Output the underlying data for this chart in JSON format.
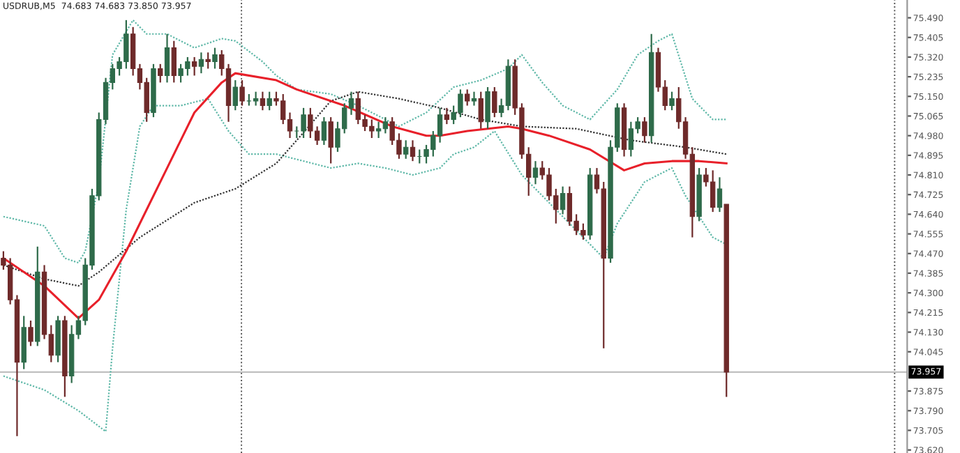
{
  "chart_data": {
    "type": "candlestick",
    "title": "USDRUB,M5  74.683 74.683 73.850 73.957",
    "categories": [
      null,
      null,
      null,
      null,
      null,
      null,
      null,
      null,
      null,
      null,
      null,
      null,
      null,
      null,
      null,
      null,
      null,
      null,
      null,
      null,
      null,
      null,
      null,
      null,
      null,
      null,
      null,
      null,
      null,
      null,
      null,
      null,
      null,
      null,
      null,
      null,
      null,
      null,
      null,
      null,
      null,
      null,
      null,
      null,
      null,
      null,
      null,
      null,
      null,
      null,
      null,
      null,
      null,
      null,
      null,
      null,
      null,
      null,
      null,
      null,
      null,
      null,
      null,
      null,
      null,
      null,
      null,
      null,
      null,
      null,
      null,
      null,
      null,
      null,
      null,
      null,
      null,
      null,
      null,
      null,
      null,
      null,
      null,
      null,
      null,
      null,
      null,
      null,
      null,
      null,
      null,
      null,
      null,
      null,
      null,
      null,
      null,
      null,
      null,
      null,
      null,
      null,
      null,
      null,
      null,
      null,
      null,
      null,
      null,
      null,
      null,
      null,
      null,
      null,
      null,
      null,
      null,
      null,
      null,
      null,
      null,
      null,
      null,
      null,
      null,
      null,
      null,
      null,
      null,
      null,
      null,
      null,
      null
    ],
    "colors": [
      "#6e2a2a",
      "#6e2a2a",
      "#6e2a2a",
      "#2e6b4a",
      "#6e2a2a",
      "#2e6b4a",
      "#6e2a2a",
      "#6e2a2a",
      "#2e6b4a",
      "#6e2a2a",
      "#2e6b4a",
      "#2e6b4a",
      "#2e6b4a",
      "#2e6b4a",
      "#2e6b4a",
      "#2e6b4a",
      "#2e6b4a",
      "#2e6b4a",
      "#2e6b4a",
      "#6e2a2a",
      "#6e2a2a",
      "#6e2a2a",
      "#2e6b4a",
      "#6e2a2a",
      "#2e6b4a",
      "#6e2a2a",
      "#2e6b4a",
      "#2e6b4a",
      "#6e2a2a",
      "#2e6b4a",
      "#6e2a2a",
      "#2e6b4a",
      "#6e2a2a",
      "#6e2a2a",
      "#2e6b4a",
      "#6e2a2a",
      "#2e6b4a",
      "#2e6b4a",
      "#6e2a2a",
      "#2e6b4a",
      "#6e2a2a",
      "#6e2a2a",
      "#6e2a2a",
      "#2e6b4a",
      "#2e6b4a",
      "#6e2a2a",
      "#6e2a2a",
      "#2e6b4a",
      "#6e2a2a",
      "#2e6b4a",
      "#2e6b4a",
      "#2e6b4a",
      "#6e2a2a",
      "#6e2a2a",
      "#6e2a2a",
      "#2e6b4a",
      "#2e6b4a",
      "#6e2a2a",
      "#6e2a2a",
      "#2e6b4a",
      "#6e2a2a",
      "#2e6b4a",
      "#2e6b4a",
      "#2e6b4a",
      "#2e6b4a",
      "#6e2a2a",
      "#2e6b4a",
      "#2e6b4a",
      "#6e2a2a",
      "#2e6b4a",
      "#6e2a2a",
      "#2e6b4a",
      "#6e2a2a",
      "#2e6b4a",
      "#2e6b4a",
      "#6e2a2a",
      "#6e2a2a",
      "#6e2a2a",
      "#2e6b4a",
      "#6e2a2a",
      "#6e2a2a",
      "#6e2a2a",
      "#2e6b4a",
      "#6e2a2a",
      "#6e2a2a",
      "#6e2a2a",
      "#2e6b4a",
      "#6e2a2a",
      "#6e2a2a",
      "#2e6b4a",
      "#2e6b4a",
      "#6e2a2a",
      "#2e6b4a",
      "#2e6b4a",
      "#6e2a2a",
      "#2e6b4a",
      "#6e2a2a",
      "#6e2a2a",
      "#2e6b4a",
      "#6e2a2a",
      "#6e2a2a",
      "#6e2a2a",
      "#2e6b4a",
      "#6e2a2a",
      "#6e2a2a",
      "#2e6b4a",
      "#6e2a2a",
      null,
      null,
      null,
      null,
      null,
      null,
      null,
      null,
      null,
      null,
      null,
      null,
      null,
      null,
      null,
      null,
      null,
      null,
      null,
      null,
      null,
      null,
      null,
      null,
      null,
      null
    ],
    "ohlc": [
      [
        74.45,
        74.48,
        74.4,
        74.42
      ],
      [
        74.42,
        74.45,
        74.25,
        74.27
      ],
      [
        74.27,
        74.29,
        73.68,
        74.0
      ],
      [
        74.0,
        74.2,
        73.97,
        74.15
      ],
      [
        74.15,
        74.18,
        74.07,
        74.09
      ],
      [
        74.09,
        74.5,
        74.07,
        74.39
      ],
      [
        74.39,
        74.42,
        74.1,
        74.12
      ],
      [
        74.12,
        74.16,
        74.0,
        74.03
      ],
      [
        74.03,
        74.2,
        74.0,
        74.18
      ],
      [
        74.18,
        74.2,
        73.85,
        73.94
      ],
      [
        73.94,
        74.16,
        73.91,
        74.12
      ],
      [
        74.12,
        74.2,
        74.1,
        74.18
      ],
      [
        74.18,
        74.45,
        74.16,
        74.42
      ],
      [
        74.42,
        74.75,
        74.4,
        74.72
      ],
      [
        74.72,
        75.08,
        74.7,
        75.05
      ],
      [
        75.05,
        75.23,
        75.03,
        75.21
      ],
      [
        75.21,
        75.29,
        75.18,
        75.27
      ],
      [
        75.27,
        75.32,
        75.24,
        75.3
      ],
      [
        75.3,
        75.48,
        75.27,
        75.42
      ],
      [
        75.42,
        75.45,
        75.24,
        75.27
      ],
      [
        75.27,
        75.29,
        75.18,
        75.21
      ],
      [
        75.21,
        75.23,
        75.04,
        75.08
      ],
      [
        75.08,
        75.29,
        75.06,
        75.27
      ],
      [
        75.27,
        75.29,
        75.21,
        75.24
      ],
      [
        75.24,
        75.42,
        75.21,
        75.36
      ],
      [
        75.36,
        75.39,
        75.21,
        75.24
      ],
      [
        75.24,
        75.29,
        75.21,
        75.27
      ],
      [
        75.27,
        75.32,
        75.24,
        75.3
      ],
      [
        75.3,
        75.32,
        75.24,
        75.28
      ],
      [
        75.28,
        75.34,
        75.25,
        75.31
      ],
      [
        75.31,
        75.34,
        75.27,
        75.3
      ],
      [
        75.3,
        75.36,
        75.27,
        75.33
      ],
      [
        75.33,
        75.35,
        75.24,
        75.27
      ],
      [
        75.27,
        75.29,
        75.04,
        75.11
      ],
      [
        75.11,
        75.22,
        75.09,
        75.19
      ],
      [
        75.19,
        75.22,
        75.11,
        75.13
      ],
      [
        75.13,
        75.16,
        75.11,
        75.13
      ],
      [
        75.13,
        75.17,
        75.11,
        75.14
      ],
      [
        75.14,
        75.17,
        75.09,
        75.11
      ],
      [
        75.11,
        75.17,
        75.09,
        75.14
      ],
      [
        75.14,
        75.17,
        75.11,
        75.13
      ],
      [
        75.13,
        75.16,
        75.03,
        75.05
      ],
      [
        75.05,
        75.08,
        74.97,
        75.0
      ],
      [
        75.0,
        75.02,
        74.97,
        75.0
      ],
      [
        75.0,
        75.1,
        74.97,
        75.07
      ],
      [
        75.07,
        75.1,
        74.97,
        75.0
      ],
      [
        75.0,
        75.02,
        74.94,
        74.96
      ],
      [
        74.96,
        75.06,
        74.94,
        75.04
      ],
      [
        75.04,
        75.06,
        74.86,
        74.93
      ],
      [
        74.93,
        75.04,
        74.91,
        75.01
      ],
      [
        75.01,
        75.12,
        74.99,
        75.1
      ],
      [
        75.1,
        75.17,
        75.07,
        75.14
      ],
      [
        75.14,
        75.17,
        75.03,
        75.05
      ],
      [
        75.05,
        75.07,
        75.0,
        75.02
      ],
      [
        75.02,
        75.05,
        74.97,
        75.0
      ],
      [
        75.0,
        75.04,
        74.97,
        75.01
      ],
      [
        75.01,
        75.06,
        74.99,
        75.04
      ],
      [
        75.04,
        75.06,
        74.94,
        74.96
      ],
      [
        74.96,
        74.99,
        74.88,
        74.9
      ],
      [
        74.9,
        74.96,
        74.88,
        74.93
      ],
      [
        74.93,
        74.96,
        74.87,
        74.89
      ],
      [
        74.89,
        74.92,
        74.86,
        74.89
      ],
      [
        74.89,
        74.94,
        74.86,
        74.92
      ],
      [
        74.92,
        75.0,
        74.89,
        74.98
      ],
      [
        74.98,
        75.1,
        74.95,
        75.07
      ],
      [
        75.07,
        75.1,
        75.03,
        75.05
      ],
      [
        75.05,
        75.11,
        75.03,
        75.08
      ],
      [
        75.08,
        75.18,
        75.06,
        75.16
      ],
      [
        75.16,
        75.18,
        75.11,
        75.13
      ],
      [
        75.13,
        75.17,
        75.11,
        75.14
      ],
      [
        75.14,
        75.17,
        75.01,
        75.04
      ],
      [
        75.04,
        75.19,
        75.01,
        75.17
      ],
      [
        75.17,
        75.19,
        75.06,
        75.08
      ],
      [
        75.08,
        75.14,
        75.06,
        75.11
      ],
      [
        75.11,
        75.31,
        75.09,
        75.28
      ],
      [
        75.28,
        75.31,
        75.07,
        75.1
      ],
      [
        75.1,
        75.12,
        74.88,
        74.9
      ],
      [
        74.9,
        74.93,
        74.72,
        74.8
      ],
      [
        74.8,
        74.87,
        74.77,
        74.84
      ],
      [
        74.84,
        74.87,
        74.79,
        74.81
      ],
      [
        74.81,
        74.84,
        74.7,
        74.72
      ],
      [
        74.72,
        74.75,
        74.6,
        74.66
      ],
      [
        74.66,
        74.76,
        74.64,
        74.73
      ],
      [
        74.73,
        74.76,
        74.59,
        74.61
      ],
      [
        74.61,
        74.64,
        74.55,
        74.57
      ],
      [
        74.57,
        74.6,
        74.53,
        74.55
      ],
      [
        74.55,
        74.84,
        74.53,
        74.81
      ],
      [
        74.81,
        74.84,
        74.73,
        74.75
      ],
      [
        74.75,
        74.78,
        74.06,
        74.45
      ],
      [
        74.45,
        74.96,
        74.43,
        74.93
      ],
      [
        74.93,
        75.12,
        74.91,
        75.1
      ],
      [
        75.1,
        75.12,
        74.89,
        74.92
      ],
      [
        74.92,
        75.04,
        74.89,
        75.01
      ],
      [
        75.01,
        75.06,
        74.99,
        75.04
      ],
      [
        75.04,
        75.06,
        74.95,
        74.98
      ],
      [
        74.98,
        75.42,
        74.95,
        75.34
      ],
      [
        75.34,
        75.36,
        75.17,
        75.19
      ],
      [
        75.19,
        75.22,
        75.09,
        75.11
      ],
      [
        75.11,
        75.17,
        75.09,
        75.14
      ],
      [
        75.14,
        75.19,
        75.01,
        75.04
      ],
      [
        75.04,
        75.06,
        74.88,
        74.9
      ],
      [
        74.9,
        74.93,
        74.54,
        74.63
      ],
      [
        74.63,
        74.84,
        74.61,
        74.81
      ],
      [
        74.81,
        74.84,
        74.76,
        74.78
      ],
      [
        74.78,
        74.83,
        74.65,
        74.67
      ],
      [
        74.67,
        74.8,
        74.65,
        74.75
      ],
      [
        74.683,
        74.683,
        73.85,
        73.957
      ],
      null,
      null,
      null,
      null,
      null,
      null,
      null,
      null,
      null,
      null,
      null,
      null,
      null,
      null,
      null,
      null,
      null,
      null,
      null,
      null,
      null,
      null,
      null,
      null,
      null,
      null
    ],
    "series": [
      {
        "type": "line",
        "color": "#5fb8a8",
        "line_style": "dotted",
        "values": [
          74.63,
          null,
          null,
          74.61,
          null,
          null,
          74.59,
          null,
          null,
          74.45,
          null,
          74.43,
          74.48,
          null,
          74.78,
          null,
          75.33,
          null,
          null,
          75.48,
          null,
          75.42,
          null,
          null,
          75.42,
          null,
          null,
          null,
          75.36,
          null,
          null,
          null,
          75.4,
          null,
          75.39,
          null,
          null,
          null,
          75.3,
          null,
          75.24,
          null,
          null,
          75.18,
          null,
          null,
          null,
          null,
          75.16,
          null,
          null,
          null,
          75.11,
          null,
          null,
          null,
          null,
          null,
          75.02,
          null,
          null,
          null,
          75.08,
          null,
          null,
          null,
          75.19,
          null,
          null,
          null,
          75.22,
          null,
          null,
          null,
          75.27,
          null,
          75.33,
          null,
          null,
          75.21,
          null,
          null,
          75.11,
          null,
          null,
          null,
          75.05,
          null,
          null,
          null,
          75.18,
          null,
          null,
          75.33,
          null,
          null,
          75.39,
          null,
          75.42,
          null,
          null,
          75.14,
          null,
          null,
          75.05,
          null,
          75.05,
          null,
          null,
          null,
          null,
          null,
          null,
          null,
          null,
          null,
          null,
          null,
          null,
          null,
          null,
          null,
          null,
          null,
          null,
          null,
          null,
          null,
          null,
          null,
          null,
          null,
          null
        ]
      },
      {
        "type": "line",
        "color": "#5fb8a8",
        "line_style": "dotted",
        "values": [
          73.94,
          null,
          null,
          null,
          null,
          null,
          73.88,
          null,
          null,
          null,
          null,
          73.79,
          null,
          null,
          null,
          73.7,
          74.06,
          null,
          74.66,
          null,
          75.02,
          null,
          75.11,
          null,
          null,
          null,
          75.11,
          null,
          null,
          null,
          75.14,
          null,
          null,
          75.0,
          null,
          null,
          74.9,
          null,
          null,
          null,
          74.9,
          null,
          null,
          null,
          74.87,
          null,
          null,
          null,
          74.84,
          null,
          null,
          null,
          74.86,
          null,
          null,
          null,
          74.84,
          null,
          null,
          null,
          74.81,
          null,
          null,
          null,
          74.84,
          null,
          74.9,
          null,
          null,
          74.93,
          null,
          null,
          75.0,
          null,
          null,
          null,
          74.81,
          null,
          null,
          null,
          74.69,
          null,
          null,
          null,
          74.57,
          null,
          null,
          null,
          74.45,
          null,
          74.6,
          null,
          null,
          null,
          74.78,
          null,
          null,
          null,
          74.84,
          null,
          74.72,
          null,
          null,
          null,
          74.54,
          null,
          74.51,
          null,
          null,
          null,
          null,
          null,
          null,
          null,
          null,
          null,
          null,
          null,
          null,
          null,
          null,
          null,
          null,
          null,
          null,
          null,
          null,
          null,
          null,
          null,
          null,
          null,
          null
        ]
      },
      {
        "type": "line",
        "color": "#333333",
        "line_style": "dotted",
        "values": [
          74.42,
          null,
          null,
          null,
          null,
          null,
          74.36,
          null,
          null,
          null,
          null,
          74.33,
          null,
          null,
          74.39,
          null,
          null,
          null,
          null,
          null,
          74.54,
          null,
          null,
          null,
          null,
          null,
          null,
          null,
          74.69,
          null,
          null,
          null,
          null,
          null,
          74.75,
          null,
          null,
          null,
          null,
          null,
          74.86,
          null,
          null,
          74.96,
          null,
          null,
          null,
          null,
          75.13,
          null,
          null,
          null,
          75.17,
          null,
          null,
          null,
          null,
          null,
          75.14,
          null,
          null,
          null,
          null,
          null,
          75.1,
          null,
          null,
          null,
          null,
          null,
          75.05,
          null,
          null,
          null,
          null,
          null,
          75.02,
          null,
          null,
          null,
          null,
          null,
          null,
          null,
          75.01,
          null,
          null,
          null,
          null,
          null,
          null,
          null,
          74.96,
          null,
          null,
          null,
          null,
          null,
          null,
          null,
          74.93,
          null,
          null,
          null,
          null,
          null,
          74.9,
          null,
          null,
          null,
          null,
          null,
          null,
          null,
          null,
          null,
          null,
          null,
          null,
          null,
          null,
          null,
          null,
          null,
          null,
          null,
          null,
          null,
          null,
          null,
          null,
          null,
          null
        ]
      },
      {
        "type": "line",
        "color": "#e8202a",
        "line_style": "solid",
        "values": [
          74.45,
          null,
          null,
          null,
          null,
          null,
          74.33,
          null,
          null,
          null,
          null,
          74.19,
          null,
          null,
          74.27,
          null,
          null,
          null,
          74.48,
          null,
          null,
          null,
          null,
          null,
          74.84,
          null,
          null,
          null,
          75.08,
          null,
          null,
          null,
          75.21,
          null,
          75.25,
          null,
          null,
          null,
          null,
          null,
          75.22,
          null,
          null,
          75.18,
          null,
          null,
          null,
          null,
          null,
          null,
          75.11,
          null,
          null,
          null,
          null,
          null,
          null,
          75.02,
          null,
          null,
          null,
          null,
          74.98,
          null,
          74.98,
          null,
          null,
          null,
          75.0,
          null,
          null,
          null,
          null,
          null,
          75.02,
          null,
          75.01,
          null,
          null,
          null,
          74.98,
          null,
          null,
          null,
          null,
          null,
          74.92,
          null,
          null,
          null,
          null,
          74.83,
          null,
          null,
          74.86,
          null,
          null,
          null,
          74.87,
          null,
          null,
          null,
          74.87,
          null,
          null,
          null,
          74.86,
          null,
          null,
          null,
          null,
          null,
          null,
          null,
          null,
          null,
          null,
          null,
          null,
          null,
          null,
          null,
          null,
          null,
          null,
          null,
          null,
          null,
          null,
          null,
          null,
          null,
          null
        ]
      }
    ],
    "ylim": [
      73.607,
      75.567
    ],
    "yticks": [
      {
        "value": 75.49,
        "label": "75.490"
      },
      {
        "value": 75.405,
        "label": "75.405"
      },
      {
        "value": 75.32,
        "label": "75.320"
      },
      {
        "value": 75.235,
        "label": "75.235"
      },
      {
        "value": 75.15,
        "label": "75.150"
      },
      {
        "value": 75.065,
        "label": "75.065"
      },
      {
        "value": 74.98,
        "label": "74.980"
      },
      {
        "value": 74.895,
        "label": "74.895"
      },
      {
        "value": 74.81,
        "label": "74.810"
      },
      {
        "value": 74.725,
        "label": "74.725"
      },
      {
        "value": 74.64,
        "label": "74.640"
      },
      {
        "value": 74.555,
        "label": "74.555"
      },
      {
        "value": 74.47,
        "label": "74.470"
      },
      {
        "value": 74.385,
        "label": "74.385"
      },
      {
        "value": 74.3,
        "label": "74.300"
      },
      {
        "value": 74.215,
        "label": "74.215"
      },
      {
        "value": 74.13,
        "label": "74.130"
      },
      {
        "value": 74.045,
        "label": "74.045"
      },
      {
        "value": 73.875,
        "label": "73.875"
      },
      {
        "value": 73.79,
        "label": "73.790"
      },
      {
        "value": 73.705,
        "label": "73.705"
      },
      {
        "value": 73.62,
        "label": "73.620"
      }
    ],
    "ref_lines": [
      {
        "axis": "y",
        "value": 73.957,
        "label": "73.957",
        "color": "#c0c0c0",
        "line_style": "solid"
      }
    ],
    "tick_labels": "y",
    "grid": false
  }
}
